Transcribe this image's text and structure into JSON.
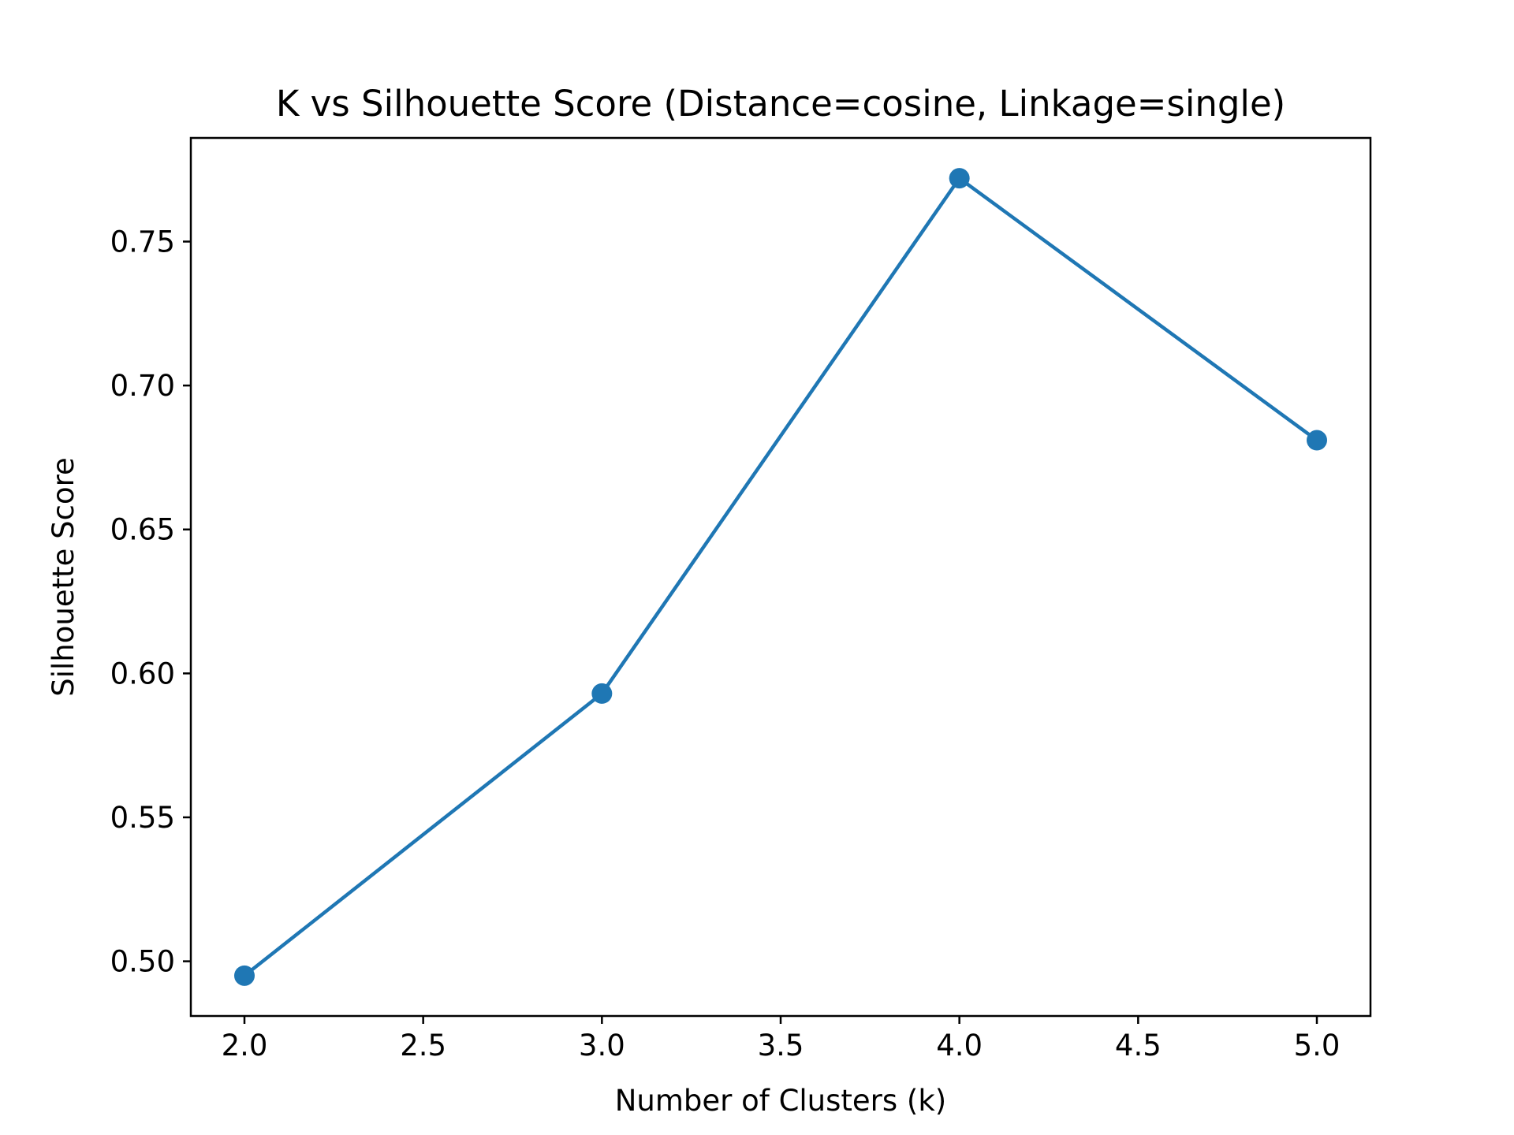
{
  "chart_data": {
    "type": "line",
    "title": "K vs Silhouette Score (Distance=cosine, Linkage=single)",
    "xlabel": "Number of Clusters (k)",
    "ylabel": "Silhouette Score",
    "x": [
      2,
      3,
      4,
      5
    ],
    "series": [
      {
        "values": [
          0.495,
          0.593,
          0.772,
          0.681
        ],
        "color": "#1f77b4",
        "marker": "circle"
      }
    ],
    "xlim": [
      1.85,
      5.15
    ],
    "ylim": [
      0.481,
      0.786
    ],
    "xticks": [
      2.0,
      2.5,
      3.0,
      3.5,
      4.0,
      4.5,
      5.0
    ],
    "xtick_labels": [
      "2.0",
      "2.5",
      "3.0",
      "3.5",
      "4.0",
      "4.5",
      "5.0"
    ],
    "yticks": [
      0.5,
      0.55,
      0.6,
      0.65,
      0.7,
      0.75
    ],
    "ytick_labels": [
      "0.50",
      "0.55",
      "0.60",
      "0.65",
      "0.70",
      "0.75"
    ],
    "grid": false,
    "legend": "none"
  }
}
